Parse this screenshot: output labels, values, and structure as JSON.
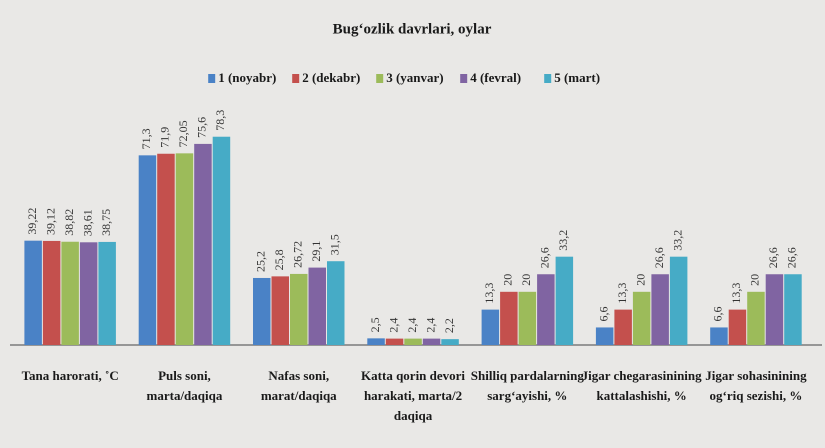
{
  "chart_data": {
    "type": "bar",
    "title": "Bugʻozlik davrlari, oylar",
    "categories": [
      [
        "Tana harorati, ˚C"
      ],
      [
        "Puls soni,",
        "marta/daqiqa"
      ],
      [
        "Nafas soni,",
        "marat/daqiqa"
      ],
      [
        "Katta qorin devori",
        "harakati, marta/2",
        "daqiqa"
      ],
      [
        "Shilliq pardalarning",
        "sargʻayishi, %"
      ],
      [
        "Jigar chegarasinining",
        "kattalashishi, %"
      ],
      [
        "Jigar sohasinining",
        "ogʻriq sezishi, %"
      ]
    ],
    "series": [
      {
        "name": "1 (noyabr)",
        "color": "#4a82c6",
        "values": [
          39.22,
          71.3,
          25.2,
          2.5,
          13.3,
          6.6,
          6.6
        ],
        "value_labels": [
          "39,22",
          "71,3",
          "25,2",
          "2,5",
          "13,3",
          "6,6",
          "6,6"
        ]
      },
      {
        "name": "2 (dekabr)",
        "color": "#c4504d",
        "values": [
          39.12,
          71.9,
          25.8,
          2.4,
          20,
          13.3,
          13.3
        ],
        "value_labels": [
          "39,12",
          "71,9",
          "25,8",
          "2,4",
          "20",
          "13,3",
          "13,3"
        ]
      },
      {
        "name": "3 (yanvar)",
        "color": "#9cbb5a",
        "values": [
          38.82,
          72.05,
          26.72,
          2.4,
          20,
          20,
          20
        ],
        "value_labels": [
          "38,82",
          "72,05",
          "26,72",
          "2,4",
          "20",
          "20",
          "20"
        ]
      },
      {
        "name": "4 (fevral)",
        "color": "#8064a2",
        "values": [
          38.61,
          75.6,
          29.1,
          2.4,
          26.6,
          26.6,
          26.6
        ],
        "value_labels": [
          "38,61",
          "75,6",
          "29,1",
          "2,4",
          "26,6",
          "26,6",
          "26,6"
        ]
      },
      {
        "name": "5 (mart)",
        "color": "#46abc6",
        "values": [
          38.75,
          78.3,
          31.5,
          2.2,
          33.2,
          33.2,
          26.6
        ],
        "value_labels": [
          "38,75",
          "78,3",
          "31,5",
          "2,2",
          "33,2",
          "33,2",
          "26,6"
        ]
      }
    ]
  }
}
